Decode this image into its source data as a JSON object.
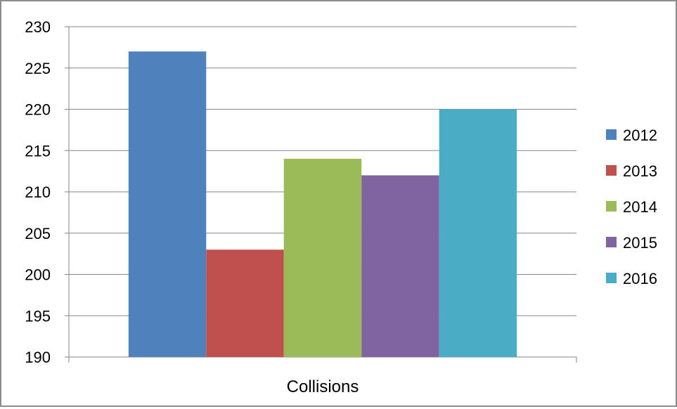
{
  "chart_data": {
    "type": "bar",
    "categories": [
      "Collisions"
    ],
    "series": [
      {
        "name": "2012",
        "values": [
          227
        ],
        "color": "#4f81bd"
      },
      {
        "name": "2013",
        "values": [
          203
        ],
        "color": "#c0504d"
      },
      {
        "name": "2014",
        "values": [
          214
        ],
        "color": "#9bbb59"
      },
      {
        "name": "2015",
        "values": [
          212
        ],
        "color": "#8064a2"
      },
      {
        "name": "2016",
        "values": [
          220
        ],
        "color": "#4bacc6"
      }
    ],
    "title": "",
    "xlabel": "",
    "ylabel": "",
    "ylim": [
      190,
      230
    ],
    "ytick_step": 5,
    "y_ticks": [
      "230",
      "225",
      "220",
      "215",
      "210",
      "205",
      "200",
      "195",
      "190"
    ],
    "grid": true,
    "legend_position": "right",
    "gridline_color": "#868686"
  }
}
